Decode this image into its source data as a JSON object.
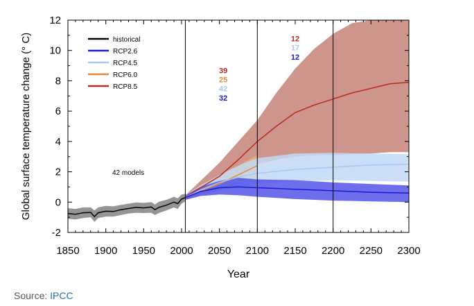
{
  "source": {
    "label": "Source:",
    "link_text": "IPCC"
  },
  "chart_data": {
    "type": "line",
    "title": "",
    "xlabel": "Year",
    "ylabel": "Global surface temperature change (° C)",
    "xlim": [
      1850,
      2300
    ],
    "ylim": [
      -2,
      12
    ],
    "x_ticks": [
      1850,
      1900,
      1950,
      2000,
      2050,
      2100,
      2150,
      2200,
      2250,
      2300
    ],
    "y_ticks": [
      -2,
      0,
      2,
      4,
      6,
      8,
      10,
      12
    ],
    "vertical_lines": [
      2005,
      2100,
      2200
    ],
    "grid": false,
    "legend_position": "top-left",
    "annotation": "42 models",
    "series": [
      {
        "name": "historical",
        "color": "#000000",
        "band_color": "#7a7a7a",
        "x": [
          1850,
          1860,
          1870,
          1880,
          1885,
          1890,
          1900,
          1910,
          1920,
          1930,
          1940,
          1950,
          1960,
          1965,
          1970,
          1980,
          1990,
          1995,
          2000,
          2005
        ],
        "y": [
          -0.75,
          -0.8,
          -0.7,
          -0.68,
          -0.95,
          -0.7,
          -0.6,
          -0.62,
          -0.5,
          -0.42,
          -0.35,
          -0.38,
          -0.32,
          -0.5,
          -0.35,
          -0.2,
          0.0,
          -0.1,
          0.2,
          0.3
        ],
        "lower": [
          -1.1,
          -1.15,
          -1.05,
          -1.0,
          -1.3,
          -1.05,
          -0.95,
          -0.95,
          -0.85,
          -0.75,
          -0.7,
          -0.72,
          -0.7,
          -0.85,
          -0.72,
          -0.55,
          -0.35,
          -0.45,
          -0.1,
          0.05
        ],
        "upper": [
          -0.4,
          -0.45,
          -0.35,
          -0.35,
          -0.55,
          -0.35,
          -0.25,
          -0.28,
          -0.18,
          -0.1,
          -0.02,
          -0.05,
          0.0,
          -0.15,
          0.02,
          0.15,
          0.35,
          0.25,
          0.5,
          0.55
        ]
      },
      {
        "name": "RCP2.6",
        "color": "#1a1ad0",
        "band_color": "#4a4ae8",
        "x": [
          2005,
          2025,
          2050,
          2075,
          2100,
          2150,
          2200,
          2250,
          2300
        ],
        "y": [
          0.3,
          0.7,
          0.95,
          1.0,
          0.95,
          0.85,
          0.75,
          0.65,
          0.6
        ],
        "lower": [
          0.15,
          0.4,
          0.5,
          0.45,
          0.35,
          0.2,
          0.1,
          0.05,
          0.0
        ],
        "upper": [
          0.45,
          1.0,
          1.4,
          1.6,
          1.5,
          1.45,
          1.3,
          1.2,
          1.1
        ]
      },
      {
        "name": "RCP4.5",
        "color": "#a8c8f0",
        "band_color": "#c3d8f5",
        "x": [
          2005,
          2025,
          2050,
          2075,
          2100,
          2150,
          2200,
          2250,
          2300
        ],
        "y": [
          0.3,
          0.8,
          1.3,
          1.65,
          1.9,
          2.15,
          2.3,
          2.45,
          2.5
        ],
        "lower": [
          0.15,
          0.5,
          0.8,
          1.0,
          1.2,
          1.35,
          1.45,
          1.4,
          1.35
        ],
        "upper": [
          0.45,
          1.1,
          1.8,
          2.4,
          2.9,
          3.2,
          3.25,
          3.2,
          3.15
        ]
      },
      {
        "name": "RCP6.0",
        "color": "#e08a3c",
        "band_color": "#f0b070",
        "x": [
          2005,
          2025,
          2050,
          2075,
          2100
        ],
        "y": [
          0.3,
          0.75,
          1.2,
          1.8,
          2.4
        ],
        "lower": [
          0.15,
          0.45,
          0.75,
          1.2,
          1.6
        ],
        "upper": [
          0.45,
          1.05,
          1.7,
          2.4,
          3.1
        ]
      },
      {
        "name": "RCP8.5",
        "color": "#b82a1a",
        "band_color": "#c27a70",
        "x": [
          2005,
          2025,
          2050,
          2075,
          2100,
          2125,
          2150,
          2175,
          2200,
          2225,
          2250,
          2275,
          2300
        ],
        "y": [
          0.3,
          0.95,
          1.7,
          2.8,
          4.0,
          5.0,
          5.9,
          6.4,
          6.8,
          7.2,
          7.5,
          7.8,
          7.9
        ],
        "lower": [
          0.15,
          0.6,
          1.1,
          1.8,
          2.5,
          2.8,
          3.0,
          3.1,
          3.1,
          3.15,
          3.2,
          3.3,
          3.3
        ],
        "upper": [
          0.45,
          1.4,
          2.6,
          4.0,
          5.4,
          7.2,
          8.8,
          10.1,
          11.1,
          11.8,
          12.0,
          12.0,
          12.0
        ]
      }
    ],
    "model_counts": [
      {
        "value": "39",
        "color": "#b82a1a",
        "x": 2055,
        "y": 8.5
      },
      {
        "value": "25",
        "color": "#e08a3c",
        "x": 2055,
        "y": 7.9
      },
      {
        "value": "42",
        "color": "#a8c8f0",
        "x": 2055,
        "y": 7.3
      },
      {
        "value": "32",
        "color": "#1a1ad0",
        "x": 2055,
        "y": 6.7
      },
      {
        "value": "12",
        "color": "#b82a1a",
        "x": 2150,
        "y": 10.6
      },
      {
        "value": "17",
        "color": "#a8c8f0",
        "x": 2150,
        "y": 10.0
      },
      {
        "value": "12",
        "color": "#1a1ad0",
        "x": 2150,
        "y": 9.4
      }
    ]
  }
}
